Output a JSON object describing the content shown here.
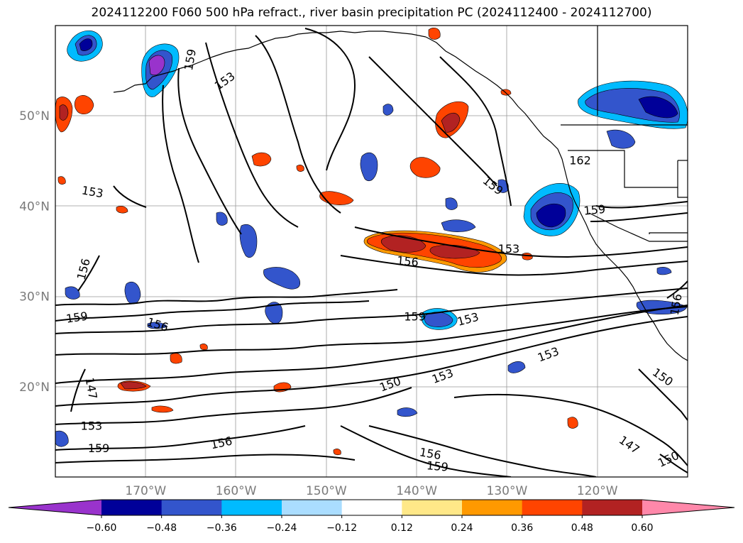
{
  "title": "2024112200 F060 500 hPa refract., river basin precipitation PC (2024112400 - 2024112700)",
  "map": {
    "lon_range": [
      -180,
      -110
    ],
    "lat_range": [
      10,
      60
    ],
    "latitude_labels": [
      {
        "lat": 50,
        "text": "50°N"
      },
      {
        "lat": 40,
        "text": "40°N"
      },
      {
        "lat": 30,
        "text": "30°N"
      },
      {
        "lat": 20,
        "text": "20°N"
      }
    ],
    "longitude_labels": [
      {
        "lon": -170,
        "text": "170°W"
      },
      {
        "lon": -160,
        "text": "160°W"
      },
      {
        "lon": -150,
        "text": "150°W"
      },
      {
        "lon": -140,
        "text": "140°W"
      },
      {
        "lon": -130,
        "text": "130°W"
      },
      {
        "lon": -120,
        "text": "120°W"
      }
    ],
    "contour_labels": [
      {
        "text": "159",
        "lon": -165,
        "lat": 56.2,
        "rot": -80
      },
      {
        "text": "153",
        "lon": -161.2,
        "lat": 53.8,
        "rot": -35
      },
      {
        "text": "153",
        "lon": -175.9,
        "lat": 41.5,
        "rot": 10
      },
      {
        "text": "156",
        "lon": -176.8,
        "lat": 33.0,
        "rot": -75
      },
      {
        "text": "159",
        "lon": -177.6,
        "lat": 27.6,
        "rot": -8
      },
      {
        "text": "156",
        "lon": -168.7,
        "lat": 26.8,
        "rot": 18
      },
      {
        "text": "147",
        "lon": -176.1,
        "lat": 19.8,
        "rot": 80
      },
      {
        "text": "153",
        "lon": -176,
        "lat": 15.6,
        "rot": 0
      },
      {
        "text": "159",
        "lon": -175.2,
        "lat": 13.1,
        "rot": 0
      },
      {
        "text": "156",
        "lon": -161.6,
        "lat": 13.7,
        "rot": -12
      },
      {
        "text": "159",
        "lon": -131.6,
        "lat": 42.2,
        "rot": 38
      },
      {
        "text": "162",
        "lon": -121.9,
        "lat": 45.0,
        "rot": 0
      },
      {
        "text": "159",
        "lon": -120.3,
        "lat": 39.5,
        "rot": -5
      },
      {
        "text": "153",
        "lon": -129.8,
        "lat": 35.2,
        "rot": 0
      },
      {
        "text": "156",
        "lon": -141,
        "lat": 33.8,
        "rot": 5
      },
      {
        "text": "159",
        "lon": -140.2,
        "lat": 27.7,
        "rot": 0
      },
      {
        "text": "153",
        "lon": -134.3,
        "lat": 27.4,
        "rot": -15
      },
      {
        "text": "153",
        "lon": -125.4,
        "lat": 23.5,
        "rot": -20
      },
      {
        "text": "153",
        "lon": -137.1,
        "lat": 21.1,
        "rot": -20
      },
      {
        "text": "150",
        "lon": -142.9,
        "lat": 20.2,
        "rot": -20
      },
      {
        "text": "150",
        "lon": -112.8,
        "lat": 21.0,
        "rot": 35
      },
      {
        "text": "147",
        "lon": -116.5,
        "lat": 13.5,
        "rot": 35
      },
      {
        "text": "150",
        "lon": -112.1,
        "lat": 11.9,
        "rot": -25
      },
      {
        "text": "156",
        "lon": -138.5,
        "lat": 12.5,
        "rot": 10
      },
      {
        "text": "159",
        "lon": -137.7,
        "lat": 11.1,
        "rot": 5
      },
      {
        "text": "156",
        "lon": -111.2,
        "lat": 29.1,
        "rot": -80
      }
    ]
  },
  "colorbar": {
    "ticks": [
      "−0.60",
      "−0.48",
      "−0.36",
      "−0.24",
      "−0.12",
      "0.12",
      "0.24",
      "0.36",
      "0.48",
      "0.60"
    ],
    "colors": [
      "#9933cc",
      "#000099",
      "#3355cc",
      "#00bbff",
      "#aaddff",
      "#ffffff",
      "#ffe888",
      "#ff9900",
      "#ff4400",
      "#b22222",
      "#ff88aa"
    ]
  }
}
